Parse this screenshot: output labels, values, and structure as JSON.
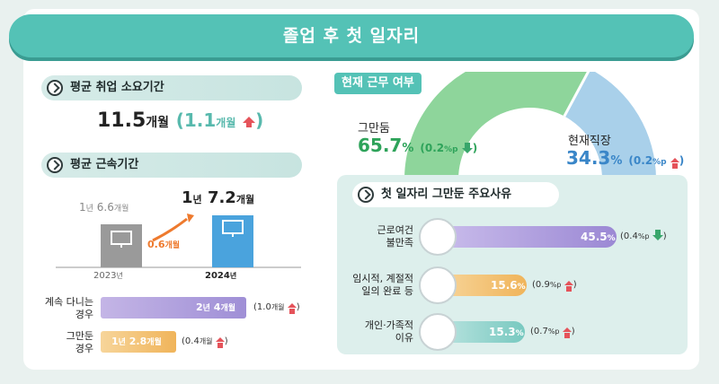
{
  "banner": {
    "title": "졸업 후 첫 일자리"
  },
  "avg_time": {
    "label": "평균 취업 소요기간",
    "value": "11.5",
    "unit": "개월",
    "delta_value": "1.1",
    "delta_unit": "개월"
  },
  "tenure": {
    "label": "평균 근속기간",
    "year_2023": "2023",
    "year_2023_suffix": "년",
    "year_2024": "2024",
    "year_2024_suffix": "년",
    "val_2023_a": "1",
    "val_2023_a_unit": "년",
    "val_2023_b": "6.6",
    "val_2023_b_unit": "개월",
    "val_2024_a": "1",
    "val_2024_a_unit": "년",
    "val_2024_b": "7.2",
    "val_2024_b_unit": "개월",
    "growth_value": "0.6",
    "growth_unit": "개월"
  },
  "stay": {
    "row1_label_1": "계속 다니는",
    "row1_label_2": "경우",
    "row1_value": "2",
    "row1_value_unit_1": "년",
    "row1_value_2": "4",
    "row1_value_unit_2": "개월",
    "row1_delta": "(1.0",
    "row1_delta_unit": "개월",
    "row2_label_1": "그만둔",
    "row2_label_2": "경우",
    "row2_value": "1",
    "row2_value_unit_1": "년",
    "row2_value_2": "2.8",
    "row2_value_unit_2": "개월",
    "row2_delta": "(0.4",
    "row2_delta_unit": "개월"
  },
  "status": {
    "label": "현재 근무 여부",
    "left_label": "그만둠",
    "left_value": "65.7",
    "left_unit": "%",
    "left_delta": "(0.2",
    "left_delta_unit": "%p",
    "right_label": "현재직장",
    "right_value": "34.3",
    "right_unit": "%",
    "right_delta": "(0.2",
    "right_delta_unit": "%p",
    "colors": {
      "left": "#8ed59b",
      "right": "#a9d0ea",
      "left_text": "#2ea35a",
      "right_text": "#3a86c8"
    }
  },
  "reasons": {
    "label": "첫 일자리 그만둔 주요사유",
    "items": [
      {
        "label_1": "근로여건",
        "label_2": "불만족",
        "value": "45.5",
        "unit": "%",
        "delta": "(0.4",
        "delta_unit": "%p",
        "dir": "down"
      },
      {
        "label_1": "임시적, 계절적",
        "label_2": "일의 완료 등",
        "value": "15.6",
        "unit": "%",
        "delta": "(0.9",
        "delta_unit": "%p",
        "dir": "up"
      },
      {
        "label_1": "개인·가족적",
        "label_2": "이유",
        "value": "15.3",
        "unit": "%",
        "delta": "(0.7",
        "delta_unit": "%p",
        "dir": "up"
      }
    ]
  },
  "chart_data": [
    {
      "type": "bar",
      "categories": [
        "2023",
        "2024"
      ],
      "values": [
        18.6,
        19.2
      ],
      "value_labels": [
        "1년 6.6개월",
        "1년 7.2개월"
      ],
      "xlabel": "",
      "ylabel": ""
    },
    {
      "type": "pie",
      "categories": [
        "그만둠",
        "현재직장"
      ],
      "values": [
        65.7,
        34.3
      ]
    },
    {
      "type": "bar",
      "categories": [
        "근로여건 불만족",
        "임시적, 계절적 일의 완료 등",
        "개인·가족적 이유"
      ],
      "values": [
        45.5,
        15.6,
        15.3
      ],
      "xlim": [
        0,
        50
      ]
    },
    {
      "type": "bar",
      "categories": [
        "계속 다니는 경우",
        "그만둔 경우"
      ],
      "values": [
        28,
        14.8
      ],
      "value_labels": [
        "2년 4개월",
        "1년 2.8개월"
      ]
    }
  ]
}
